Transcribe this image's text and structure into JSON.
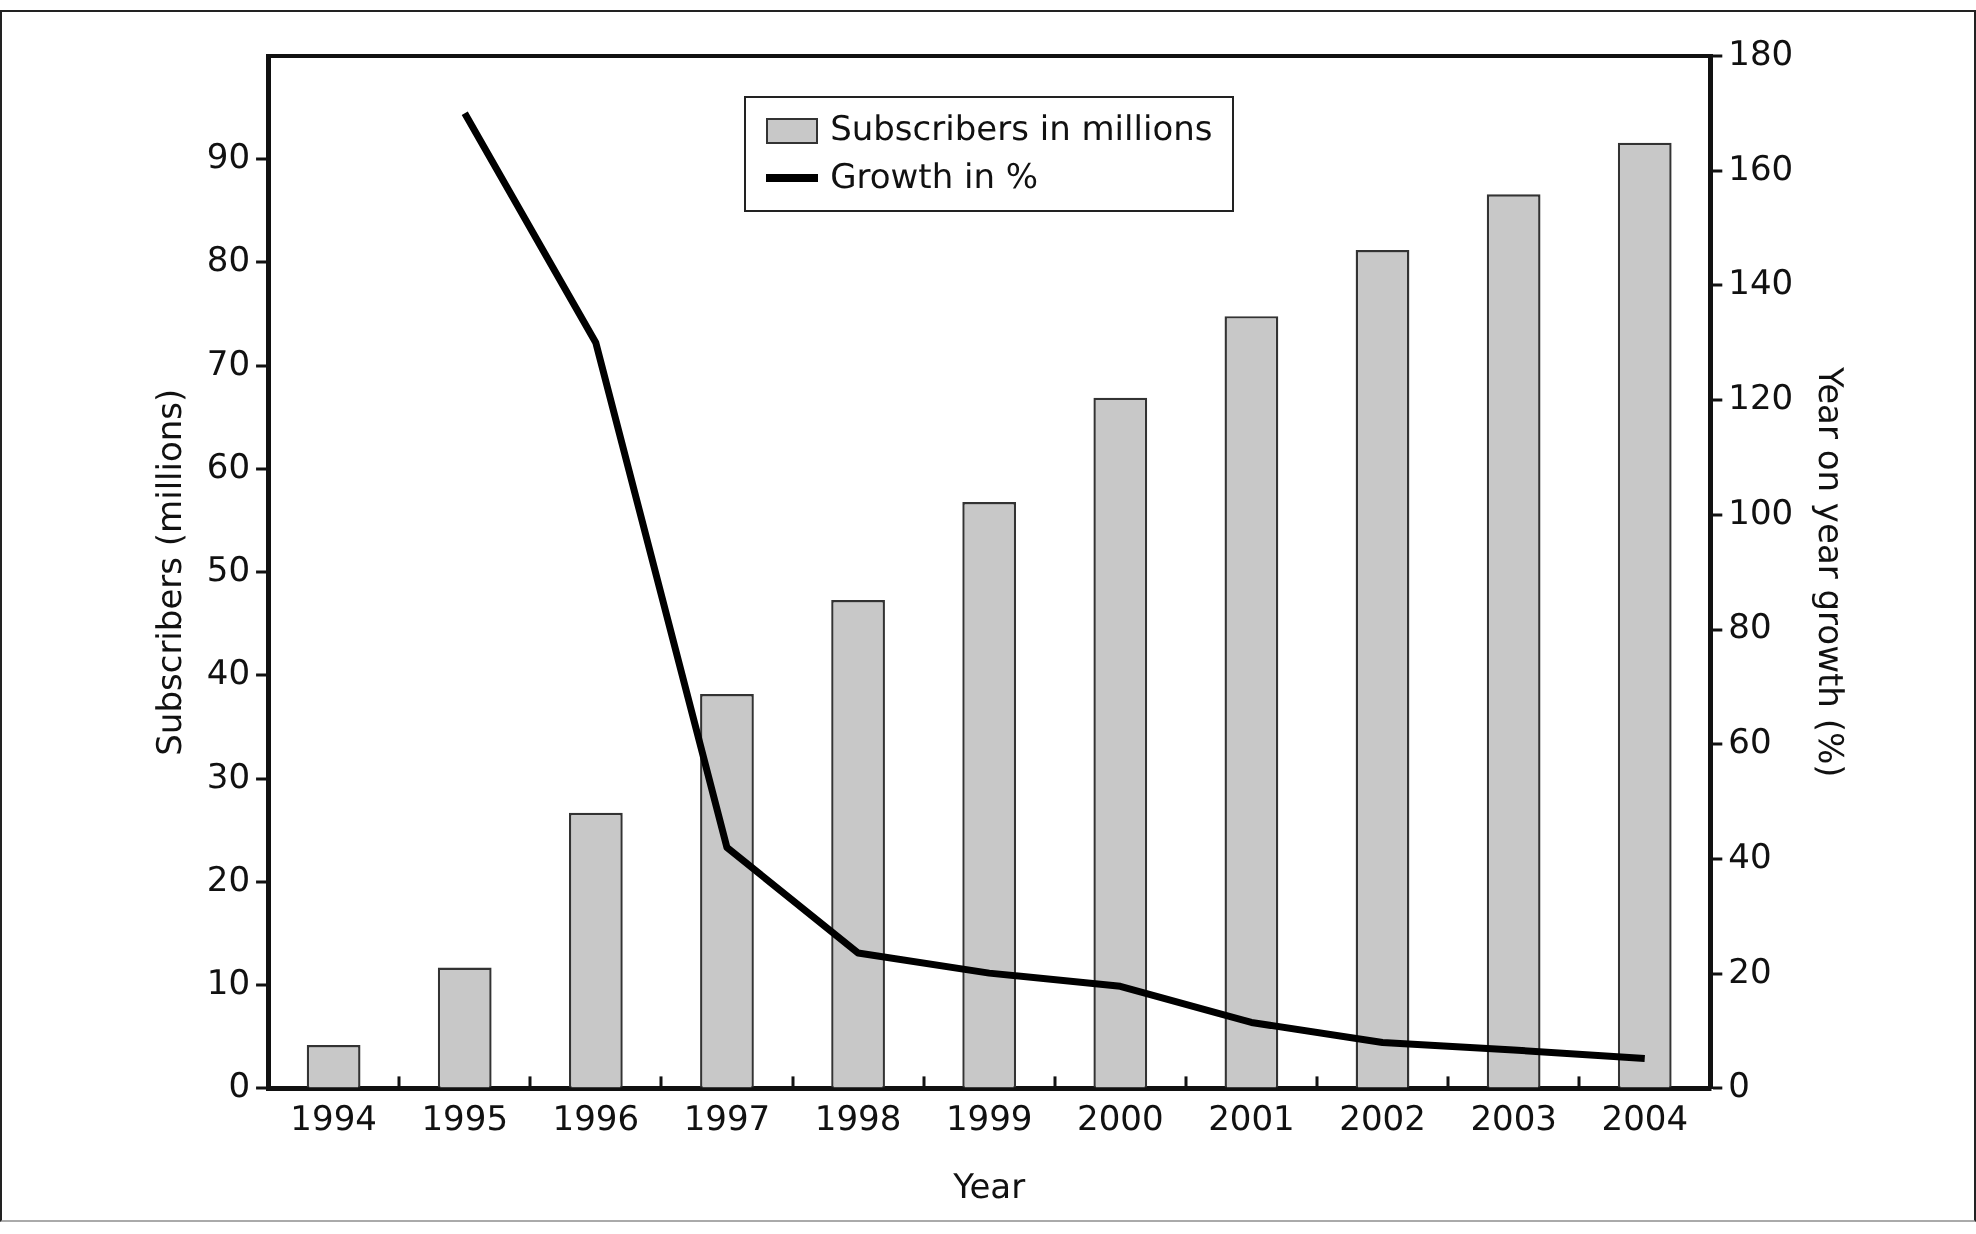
{
  "chart_data": {
    "type": "bar",
    "xlabel": "Year",
    "ylabel": "Subscribers (millions)",
    "y2label": "Year on year growth (%)",
    "categories": [
      "1994",
      "1995",
      "1996",
      "1997",
      "1998",
      "1999",
      "2000",
      "2001",
      "2002",
      "2003",
      "2004"
    ],
    "series": [
      {
        "name": "Subscribers in millions",
        "color": "#c8c8c8",
        "values": [
          4.2,
          11.7,
          26.7,
          38.2,
          47.3,
          56.8,
          66.9,
          74.8,
          81.2,
          86.6,
          91.6
        ]
      },
      {
        "name": "Growth in %",
        "type": "line",
        "axis": "y2",
        "color": "#000000",
        "values": [
          null,
          170,
          130,
          42,
          23.6,
          20.1,
          17.8,
          11.5,
          8,
          6.7,
          5.2
        ]
      }
    ],
    "ylim": [
      0,
      100
    ],
    "yticks": [
      0,
      10,
      20,
      30,
      40,
      50,
      60,
      70,
      80,
      90
    ],
    "y2lim": [
      0,
      180
    ],
    "y2ticks": [
      0,
      20,
      40,
      60,
      80,
      100,
      120,
      140,
      160,
      180
    ],
    "grid": false,
    "legend": "top",
    "marker": "none",
    "line_style": "solid"
  }
}
